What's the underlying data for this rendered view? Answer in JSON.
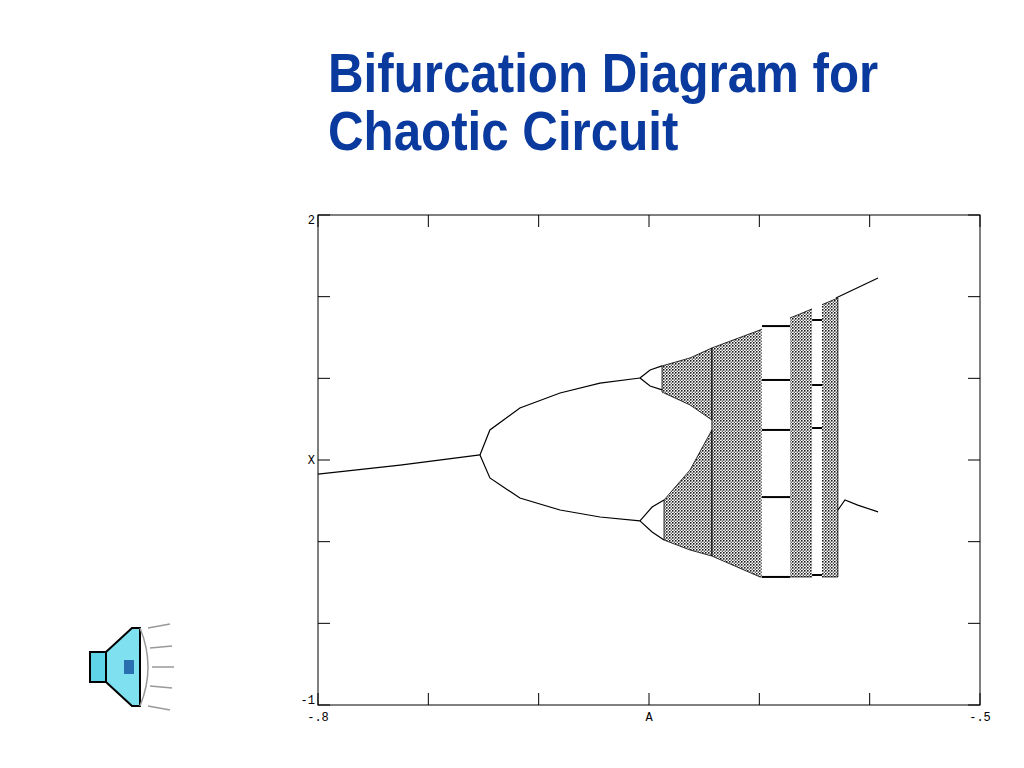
{
  "chart_data": {
    "type": "bifurcation",
    "title": [
      "Bifurcation Diagram for",
      "Chaotic Circuit"
    ],
    "x_label": "A",
    "y_label": "X",
    "color": "#000000",
    "xlim": [
      -0.8,
      -0.5
    ],
    "ylim": [
      -1,
      2
    ],
    "xticks": [
      {
        "value": -0.8,
        "label": "-.8"
      },
      {
        "value": -0.5,
        "label": "-.5"
      }
    ],
    "yticks": [
      2,
      -1
    ],
    "x_minor_ticks": [
      -0.75,
      -0.7,
      -0.65,
      -0.6,
      -0.55
    ],
    "y_minor_ticks": [
      1.5,
      1,
      0.5,
      0,
      -0.5
    ],
    "branches": [
      {
        "x": [
          -0.8,
          -0.7628,
          -0.7266
        ],
        "values": [
          0.414,
          0.469,
          0.531
        ]
      },
      {
        "x": [
          -0.7266,
          -0.7221,
          -0.7085,
          -0.6903,
          -0.6722,
          -0.6541
        ],
        "values": [
          0.531,
          0.684,
          0.818,
          0.91,
          0.971,
          1.002
        ]
      },
      {
        "x": [
          -0.7266,
          -0.7221,
          -0.7085,
          -0.6903,
          -0.6722,
          -0.6541
        ],
        "values": [
          0.531,
          0.39,
          0.267,
          0.194,
          0.151,
          0.127
        ]
      },
      {
        "x": [
          -0.6541,
          -0.6495,
          -0.6441
        ],
        "values": [
          1.002,
          1.051,
          1.076
        ]
      },
      {
        "x": [
          -0.6541,
          -0.6495,
          -0.6441
        ],
        "values": [
          1.002,
          0.953,
          0.929
        ]
      },
      {
        "x": [
          -0.6541,
          -0.6486,
          -0.6432
        ],
        "values": [
          0.127,
          0.212,
          0.255
        ]
      },
      {
        "x": [
          -0.6541,
          -0.6486,
          -0.6432
        ],
        "values": [
          0.127,
          0.059,
          0.01
        ]
      },
      {
        "x": [
          -0.5653,
          -0.5462
        ],
        "values": [
          1.492,
          1.614
        ]
      },
      {
        "x": [
          -0.5644,
          -0.5612,
          -0.5554,
          -0.5462
        ],
        "values": [
          0.194,
          0.255,
          0.224,
          0.182
        ]
      }
    ],
    "bands": [
      {
        "x": [
          -0.6441,
          -0.6314,
          -0.6215
        ],
        "upper": [
          1.076,
          1.125,
          1.186
        ],
        "lower": [
          0.916,
          0.837,
          0.745
        ]
      },
      {
        "x": [
          -0.6432,
          -0.6314,
          -0.6215
        ],
        "upper": [
          0.255,
          0.439,
          0.684
        ],
        "lower": [
          0.01,
          -0.051,
          -0.088
        ]
      },
      {
        "x": [
          -0.6215,
          -0.5997,
          -0.5816,
          -0.5644
        ],
        "upper": [
          1.186,
          1.296,
          1.394,
          1.492
        ],
        "lower": [
          -0.088,
          -0.216,
          -0.216,
          -0.216
        ]
      }
    ],
    "windows": [
      {
        "x": [
          -0.5988,
          -0.5861
        ],
        "values": [
          1.32,
          0.99,
          0.684,
          0.273,
          -0.216
        ]
      },
      {
        "x": [
          -0.5761,
          -0.5716
        ],
        "values": [
          1.357,
          0.959,
          0.696,
          -0.204
        ]
      }
    ]
  }
}
